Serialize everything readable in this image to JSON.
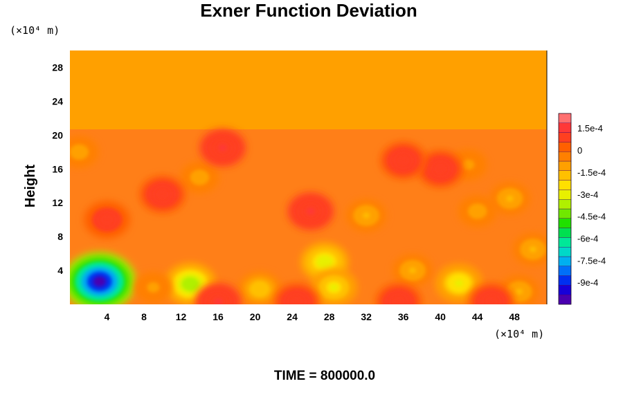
{
  "chart_data": {
    "type": "heatmap",
    "title": "Exner Function Deviation",
    "ylabel": "Height",
    "xunit": "(×10⁴ m)",
    "yunit": "(×10⁴ m)",
    "time_label": "TIME = 800000.0",
    "xlim": [
      0,
      51.5
    ],
    "ylim": [
      0,
      30
    ],
    "x_ticks": [
      "4",
      "8",
      "12",
      "16",
      "20",
      "24",
      "28",
      "32",
      "36",
      "40",
      "44",
      "48"
    ],
    "y_ticks": [
      "4",
      "8",
      "12",
      "16",
      "20",
      "24",
      "28"
    ],
    "colorbar": {
      "labels": [
        "1.5e-4",
        "0",
        "-1.5e-4",
        "-3e-4",
        "-4.5e-4",
        "-6e-4",
        "-7.5e-4",
        "-9e-4"
      ],
      "vmin": -0.00105,
      "vmax": 0.00025,
      "colors": [
        "#4a00b0",
        "#1800d8",
        "#0030f0",
        "#0070f8",
        "#00b0f0",
        "#00d8c8",
        "#00e898",
        "#00e050",
        "#20e000",
        "#70e800",
        "#b0f000",
        "#e8f000",
        "#ffe000",
        "#ffc000",
        "#ffa000",
        "#ff8000",
        "#ff6000",
        "#ff4020",
        "#ff3838",
        "#ff7070"
      ]
    },
    "upper_layer": {
      "y_from": 20.5,
      "y_to": 30,
      "value": -6e-05,
      "color": "#ffa000"
    },
    "lower_background": {
      "y_from": 0,
      "y_to": 20.5,
      "value": 2e-05,
      "color": "#ff7f18"
    },
    "features": [
      {
        "x": 3.2,
        "y": 2.7,
        "value": -0.001
      },
      {
        "x": 13.0,
        "y": 2.4,
        "value": -0.0004
      },
      {
        "x": 20.5,
        "y": 1.8,
        "value": -0.0002
      },
      {
        "x": 27.5,
        "y": 5.0,
        "value": -0.00032
      },
      {
        "x": 28.5,
        "y": 2.0,
        "value": -0.00028
      },
      {
        "x": 32.0,
        "y": 10.5,
        "value": -0.00015
      },
      {
        "x": 42.0,
        "y": 2.5,
        "value": -0.0003
      },
      {
        "x": 48.5,
        "y": 1.5,
        "value": -0.00015
      },
      {
        "x": 50.0,
        "y": 6.5,
        "value": -0.00015
      },
      {
        "x": 47.5,
        "y": 12.5,
        "value": -0.00015
      },
      {
        "x": 44.0,
        "y": 11.0,
        "value": -0.00012
      },
      {
        "x": 1.0,
        "y": 18.0,
        "value": -0.00012
      },
      {
        "x": 14.0,
        "y": 15.0,
        "value": -0.00012
      },
      {
        "x": 43.0,
        "y": 16.5,
        "value": -0.0001
      },
      {
        "x": 37.0,
        "y": 4.0,
        "value": -0.00015
      },
      {
        "x": 9.0,
        "y": 2.0,
        "value": -0.0001
      },
      {
        "x": 16.0,
        "y": 0.3,
        "value": 0.00012
      },
      {
        "x": 24.5,
        "y": 0.3,
        "value": 0.0001
      },
      {
        "x": 35.5,
        "y": 0.3,
        "value": 0.0001
      },
      {
        "x": 45.5,
        "y": 0.3,
        "value": 0.0001
      },
      {
        "x": 16.5,
        "y": 18.5,
        "value": 0.00013
      },
      {
        "x": 26.0,
        "y": 11.0,
        "value": 0.00012
      },
      {
        "x": 10.0,
        "y": 13.0,
        "value": 0.0001
      },
      {
        "x": 40.0,
        "y": 16.0,
        "value": 0.0001
      },
      {
        "x": 36.0,
        "y": 17.0,
        "value": 0.0001
      },
      {
        "x": 4.0,
        "y": 10.0,
        "value": 8e-05
      }
    ]
  }
}
